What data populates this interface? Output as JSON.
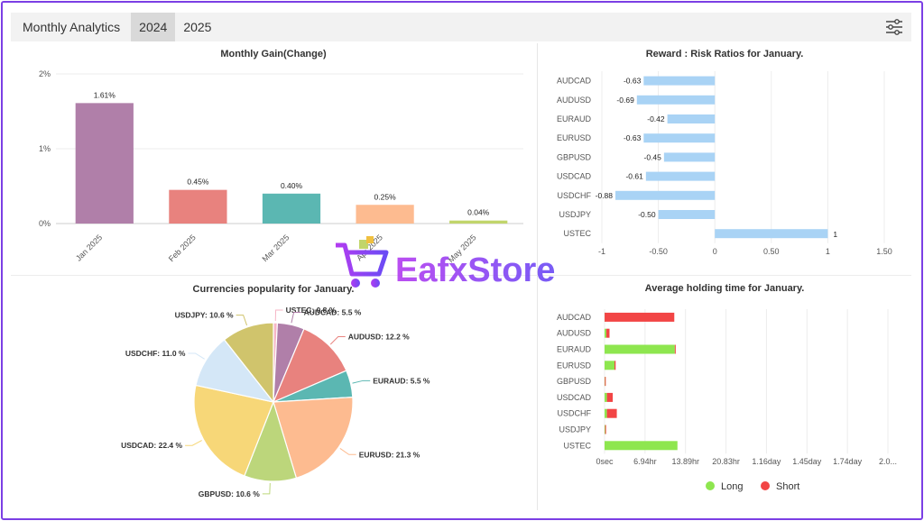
{
  "header": {
    "title": "Monthly Analytics",
    "tabs": [
      "2024",
      "2025"
    ],
    "active_tab": "2024",
    "settings_icon": "sliders-icon"
  },
  "watermark": {
    "text": "EafxStore",
    "icon": "shopping-cart-icon"
  },
  "chart_data": [
    {
      "type": "bar",
      "title": "Monthly Gain(Change)",
      "categories": [
        "Jan 2025",
        "Feb 2025",
        "Mar 2025",
        "Apr 2025",
        "May 2025"
      ],
      "values": [
        1.61,
        0.45,
        0.4,
        0.25,
        0.04
      ],
      "value_labels": [
        "1.61%",
        "0.45%",
        "0.40%",
        "0.25%",
        "0.04%"
      ],
      "colors": [
        "#b07fa9",
        "#e8827e",
        "#5bb7b2",
        "#fdbb90",
        "#c1d56b"
      ],
      "y_ticks": [
        "0%",
        "1%",
        "2%"
      ],
      "ylim": [
        0,
        2
      ],
      "grid": true
    },
    {
      "type": "bar",
      "orientation": "horizontal",
      "title": "Reward : Risk Ratios for January.",
      "categories": [
        "AUDCAD",
        "AUDUSD",
        "EURAUD",
        "EURUSD",
        "GBPUSD",
        "USDCAD",
        "USDCHF",
        "USDJPY",
        "USTEC"
      ],
      "values": [
        -0.63,
        -0.69,
        -0.42,
        -0.63,
        -0.45,
        -0.61,
        -0.88,
        -0.5,
        1
      ],
      "value_labels": [
        "-0.63",
        "-0.69",
        "-0.42",
        "-0.63",
        "-0.45",
        "-0.61",
        "-0.88",
        "-0.50",
        "1"
      ],
      "x_ticks": [
        "-1",
        "-0.50",
        "0",
        "0.50",
        "1",
        "1.50"
      ],
      "xlim": [
        -1,
        1.5
      ],
      "color": "#a9d3f5"
    },
    {
      "type": "pie",
      "title": "Currencies popularity for January.",
      "labels": [
        "USTEC: 0.8 %",
        "AUDCAD: 5.5 %",
        "AUDUSD: 12.2 %",
        "EURAUD: 5.5 %",
        "EURUSD: 21.3 %",
        "GBPUSD: 10.6 %",
        "USDCAD: 22.4 %",
        "USDCHF: 11.0 %",
        "USDJPY: 10.6 %"
      ],
      "values": [
        0.8,
        5.5,
        12.2,
        5.5,
        21.3,
        10.6,
        22.4,
        11.0,
        10.6
      ],
      "colors": [
        "#f6b6c6",
        "#b07fa9",
        "#e8827e",
        "#5bb7b2",
        "#fdbb90",
        "#bcd67b",
        "#f7d778",
        "#d4e7f7",
        "#d0c46c"
      ]
    },
    {
      "type": "bar",
      "orientation": "horizontal",
      "stacked": true,
      "title": "Average holding time for January.",
      "categories": [
        "AUDCAD",
        "AUDUSD",
        "EURAUD",
        "EURUSD",
        "GBPUSD",
        "USDCAD",
        "USDCHF",
        "USDJPY",
        "USTEC"
      ],
      "series": [
        {
          "name": "Long",
          "color": "#8ee64f",
          "values": [
            0.01,
            0.3,
            12.05,
            1.7,
            0.05,
            0.4,
            0.4,
            0.1,
            12.5
          ]
        },
        {
          "name": "Short",
          "color": "#f24545",
          "values": [
            11.95,
            0.55,
            0.08,
            0.2,
            0.15,
            1.0,
            1.7,
            0.15,
            0
          ]
        }
      ],
      "x_unit": "hours",
      "x_ticks": [
        "0sec",
        "6.94hr",
        "13.89hr",
        "20.83hr",
        "1.16day",
        "1.45day",
        "1.74day",
        "2.0..."
      ],
      "xlim": [
        0,
        48.6
      ]
    }
  ]
}
